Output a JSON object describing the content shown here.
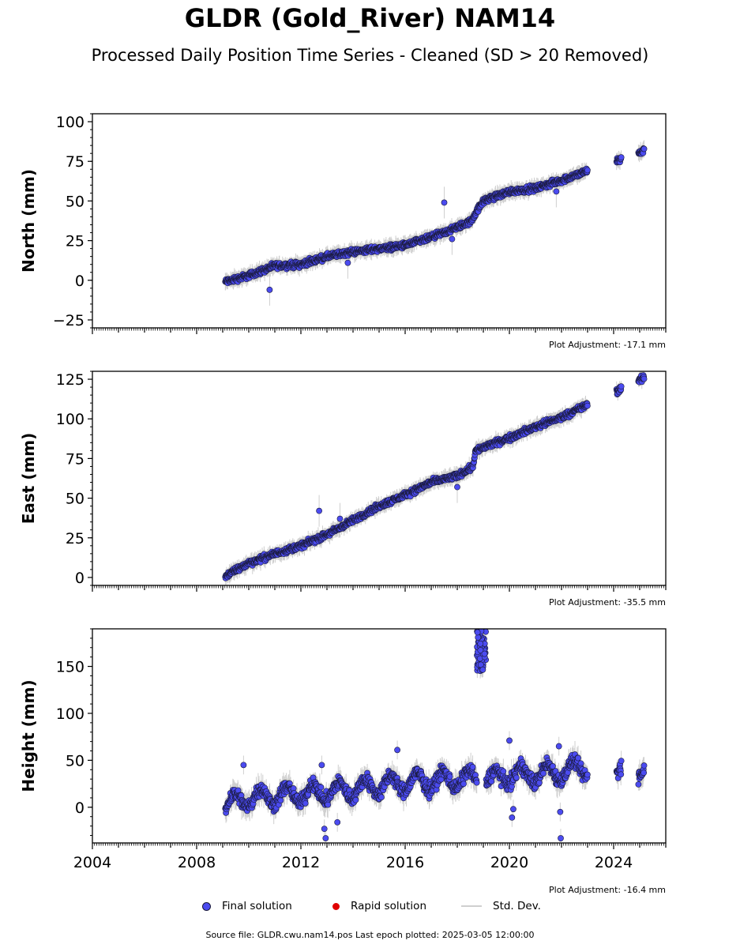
{
  "title": "GLDR (Gold_River) NAM14",
  "subtitle": "Processed Daily Position Time Series - Cleaned (SD > 20 Removed)",
  "source_note": "Source file: GLDR.cwu.nam14.pos  Last epoch plotted: 2025-03-05 12:00:00",
  "legend": [
    {
      "label": "Final solution",
      "color": "#4b4bf0"
    },
    {
      "label": "Rapid solution",
      "color": "#e00000"
    },
    {
      "label": "Std. Dev.",
      "color": "#cfcfcf"
    }
  ],
  "colors": {
    "final": "#4b4bf0",
    "rapid": "#e00000",
    "stddev": "#cfcfcf",
    "marker_edge": "#1a1a3a"
  },
  "chart_data": [
    {
      "type": "scatter",
      "ylabel": "North (mm)",
      "adjustment_note": "Plot Adjustment: -17.1 mm",
      "xlim": [
        2004,
        2026
      ],
      "ylim": [
        -30,
        105
      ],
      "yticks": [
        -25,
        0,
        25,
        50,
        75,
        100
      ],
      "ytick_labels": [
        "−25",
        "0",
        "25",
        "50",
        "75",
        "100"
      ],
      "trend_x": [
        2009.1,
        2010,
        2011,
        2012,
        2013,
        2014,
        2015,
        2016,
        2016.8,
        2017.5,
        2018.5,
        2019,
        2020,
        2021,
        2022,
        2023.0,
        2024.1,
        2024.3,
        2024.95,
        2025.17
      ],
      "trend_y": [
        -1,
        3,
        9,
        10,
        15,
        18,
        20,
        22,
        26,
        30,
        37,
        50,
        56,
        58,
        63,
        69,
        75,
        77,
        80,
        82
      ],
      "gaps": [
        [
          2023.0,
          2024.1
        ],
        [
          2024.3,
          2024.95
        ]
      ],
      "outliers": [
        {
          "x": 2017.5,
          "y": 49
        },
        {
          "x": 2013.8,
          "y": 11
        },
        {
          "x": 2010.8,
          "y": -6
        },
        {
          "x": 2021.8,
          "y": 56
        },
        {
          "x": 2017.8,
          "y": 26
        }
      ]
    },
    {
      "type": "scatter",
      "ylabel": "East (mm)",
      "adjustment_note": "Plot Adjustment: -35.5 mm",
      "xlim": [
        2004,
        2026
      ],
      "ylim": [
        -5,
        130
      ],
      "yticks": [
        0,
        25,
        50,
        75,
        100,
        125
      ],
      "ytick_labels": [
        "0",
        "25",
        "50",
        "75",
        "100",
        "125"
      ],
      "trend_x": [
        2009.1,
        2010,
        2011,
        2012,
        2013,
        2014,
        2015,
        2016,
        2017,
        2018,
        2018.6,
        2018.7,
        2019,
        2020,
        2021,
        2022,
        2023.0,
        2024.1,
        2024.3,
        2024.95,
        2025.17
      ],
      "trend_y": [
        1,
        9,
        15,
        20,
        27,
        36,
        45,
        52,
        60,
        64,
        70,
        80,
        82,
        88,
        95,
        101,
        109,
        117,
        119,
        124,
        126
      ],
      "gaps": [
        [
          2023.0,
          2024.1
        ],
        [
          2024.3,
          2024.95
        ]
      ],
      "outliers": [
        {
          "x": 2012.7,
          "y": 42
        },
        {
          "x": 2018.0,
          "y": 57
        },
        {
          "x": 2013.5,
          "y": 37
        }
      ]
    },
    {
      "type": "scatter",
      "ylabel": "Height (mm)",
      "adjustment_note": "Plot Adjustment: -16.4 mm",
      "xlim": [
        2004,
        2026
      ],
      "ylim": [
        -38,
        190
      ],
      "yticks": [
        0,
        50,
        100,
        150
      ],
      "ytick_labels": [
        "0",
        "50",
        "100",
        "150"
      ],
      "xticks": [
        2004,
        2008,
        2012,
        2016,
        2020,
        2024
      ],
      "xtick_labels": [
        "2004",
        "2008",
        "2012",
        "2016",
        "2020",
        "2024"
      ],
      "trend_x": [
        2009.1,
        2010,
        2011,
        2012,
        2013,
        2014,
        2015,
        2016,
        2017,
        2018,
        2018.7,
        2019,
        2020,
        2021,
        2022,
        2023.0,
        2024.1,
        2024.3,
        2024.95,
        2025.17
      ],
      "trend_y": [
        3,
        10,
        12,
        14,
        16,
        19,
        23,
        26,
        28,
        30,
        30,
        28,
        34,
        35,
        38,
        42,
        40,
        40,
        42,
        44
      ],
      "gaps": [
        [
          2023.0,
          2024.1
        ],
        [
          2024.3,
          2024.95
        ]
      ],
      "cluster": {
        "x": [
          2018.75,
          2019.1
        ],
        "y": [
          145,
          188
        ]
      },
      "outliers": [
        {
          "x": 2009.8,
          "y": 45
        },
        {
          "x": 2012.9,
          "y": -23
        },
        {
          "x": 2012.95,
          "y": -33
        },
        {
          "x": 2013.4,
          "y": -16
        },
        {
          "x": 2020.0,
          "y": 71
        },
        {
          "x": 2020.1,
          "y": -11
        },
        {
          "x": 2020.15,
          "y": -2
        },
        {
          "x": 2021.95,
          "y": -5
        },
        {
          "x": 2021.97,
          "y": -33
        },
        {
          "x": 2015.7,
          "y": 61
        },
        {
          "x": 2021.9,
          "y": 65
        },
        {
          "x": 2012.8,
          "y": 45
        }
      ]
    }
  ]
}
